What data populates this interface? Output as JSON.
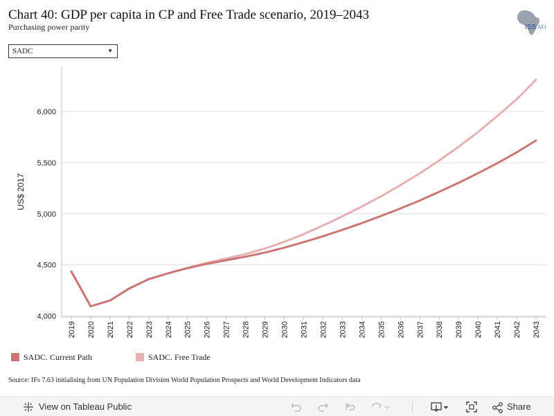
{
  "header": {
    "title": "Chart 40: GDP per capita in CP and Free Trade scenario, 2019–2043",
    "subtitle": "Purchasing power parity"
  },
  "logo": {
    "icon": "africa-map-icon",
    "text": "ISS",
    "text_suffix": "AFI"
  },
  "filter": {
    "selected": "SADC"
  },
  "chart_data": {
    "type": "line",
    "title": "Chart 40: GDP per capita in CP and Free Trade scenario, 2019–2043",
    "subtitle": "Purchasing power parity",
    "ylabel": "US$ 2017",
    "xlabel": "",
    "ylim": [
      3990,
      6440
    ],
    "yticks": [
      4000,
      4500,
      5000,
      5500,
      6000
    ],
    "ytick_labels": [
      "4,000",
      "4,500",
      "5,000",
      "5,500",
      "6,000"
    ],
    "x": [
      2019,
      2020,
      2021,
      2022,
      2023,
      2024,
      2025,
      2026,
      2027,
      2028,
      2029,
      2030,
      2031,
      2032,
      2033,
      2034,
      2035,
      2036,
      2037,
      2038,
      2039,
      2040,
      2041,
      2042,
      2043
    ],
    "grid": "horizontal",
    "legend_position": "bottom-left",
    "series": [
      {
        "name": "SADC. Current Path",
        "color": "#cc7474",
        "values": [
          4435,
          4095,
          4152,
          4270,
          4360,
          4418,
          4468,
          4510,
          4545,
          4580,
          4620,
          4668,
          4722,
          4780,
          4842,
          4908,
          4978,
          5052,
          5130,
          5214,
          5302,
          5396,
          5494,
          5600,
          5716
        ]
      },
      {
        "name": "SADC. Free Trade",
        "color": "#e6b0b0",
        "values": [
          4435,
          4095,
          4152,
          4270,
          4360,
          4418,
          4470,
          4520,
          4562,
          4605,
          4660,
          4725,
          4800,
          4885,
          4975,
          5070,
          5170,
          5280,
          5395,
          5520,
          5655,
          5798,
          5955,
          6120,
          6310
        ]
      }
    ]
  },
  "legend": {
    "items": [
      {
        "label": "SADC. Current Path",
        "color": "#cc7474"
      },
      {
        "label": "SADC. Free Trade",
        "color": "#e6b0b0"
      }
    ]
  },
  "source": "Source: IFs 7.63 initialising from UN Population Division World Population Prospects and World Development Indicators data",
  "toolbar": {
    "view_label": "View on Tableau Public",
    "share_label": "Share",
    "icons": [
      "tableau-icon",
      "undo-icon",
      "redo-icon",
      "revert-icon",
      "refresh-icon",
      "download-icon",
      "fullscreen-icon",
      "share-icon"
    ]
  }
}
